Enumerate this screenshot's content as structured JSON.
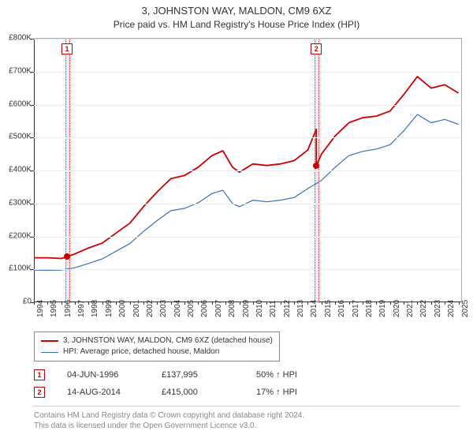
{
  "titles": {
    "main": "3, JOHNSTON WAY, MALDON, CM9 6XZ",
    "sub": "Price paid vs. HM Land Registry's House Price Index (HPI)"
  },
  "chart": {
    "type": "line",
    "background_color": "#ffffff",
    "grid_color": "#eeeeee",
    "axis_color": "#333333",
    "ylim": [
      0,
      800000
    ],
    "ytick_step": 100000,
    "ytick_labels": [
      "£0",
      "£100K",
      "£200K",
      "£300K",
      "£400K",
      "£500K",
      "£600K",
      "£700K",
      "£800K"
    ],
    "xlim": [
      1994,
      2025.2
    ],
    "xticks": [
      1994,
      1995,
      1996,
      1997,
      1998,
      1999,
      2000,
      2001,
      2002,
      2003,
      2004,
      2005,
      2006,
      2007,
      2008,
      2009,
      2010,
      2011,
      2012,
      2013,
      2014,
      2015,
      2016,
      2017,
      2018,
      2019,
      2020,
      2021,
      2022,
      2023,
      2024,
      2025
    ],
    "series": [
      {
        "name": "3, JOHNSTON WAY, MALDON, CM9 6XZ (detached house)",
        "color": "#cc0000",
        "line_width": 1.8,
        "data": [
          [
            1994,
            135000
          ],
          [
            1995,
            135000
          ],
          [
            1996,
            133000
          ],
          [
            1996.42,
            138000
          ],
          [
            1997,
            147000
          ],
          [
            1998,
            165000
          ],
          [
            1999,
            180000
          ],
          [
            2000,
            210000
          ],
          [
            2001,
            240000
          ],
          [
            2002,
            290000
          ],
          [
            2003,
            335000
          ],
          [
            2004,
            375000
          ],
          [
            2005,
            385000
          ],
          [
            2006,
            410000
          ],
          [
            2007,
            445000
          ],
          [
            2007.8,
            460000
          ],
          [
            2008.5,
            410000
          ],
          [
            2009,
            395000
          ],
          [
            2010,
            420000
          ],
          [
            2011,
            415000
          ],
          [
            2012,
            420000
          ],
          [
            2013,
            430000
          ],
          [
            2014,
            462000
          ],
          [
            2014.62,
            525000
          ],
          [
            2014.625,
            415000
          ],
          [
            2015,
            450000
          ],
          [
            2016,
            505000
          ],
          [
            2017,
            545000
          ],
          [
            2018,
            560000
          ],
          [
            2019,
            565000
          ],
          [
            2020,
            580000
          ],
          [
            2021,
            630000
          ],
          [
            2022,
            685000
          ],
          [
            2023,
            650000
          ],
          [
            2024,
            660000
          ],
          [
            2025,
            635000
          ]
        ]
      },
      {
        "name": "HPI: Average price, detached house, Maldon",
        "color": "#3b6fb6",
        "line_width": 1.2,
        "data": [
          [
            1994,
            98000
          ],
          [
            1995,
            97000
          ],
          [
            1996,
            98000
          ],
          [
            1997,
            105000
          ],
          [
            1998,
            118000
          ],
          [
            1999,
            132000
          ],
          [
            2000,
            155000
          ],
          [
            2001,
            178000
          ],
          [
            2002,
            215000
          ],
          [
            2003,
            248000
          ],
          [
            2004,
            278000
          ],
          [
            2005,
            285000
          ],
          [
            2006,
            302000
          ],
          [
            2007,
            330000
          ],
          [
            2007.8,
            340000
          ],
          [
            2008.5,
            300000
          ],
          [
            2009,
            290000
          ],
          [
            2010,
            310000
          ],
          [
            2011,
            305000
          ],
          [
            2012,
            310000
          ],
          [
            2013,
            318000
          ],
          [
            2014,
            345000
          ],
          [
            2015,
            370000
          ],
          [
            2016,
            410000
          ],
          [
            2017,
            445000
          ],
          [
            2018,
            458000
          ],
          [
            2019,
            465000
          ],
          [
            2020,
            478000
          ],
          [
            2021,
            520000
          ],
          [
            2022,
            570000
          ],
          [
            2023,
            545000
          ],
          [
            2024,
            555000
          ],
          [
            2025,
            540000
          ]
        ]
      }
    ],
    "sale_points": [
      {
        "x": 1996.42,
        "y": 138000,
        "color": "#cc0000"
      },
      {
        "x": 2014.62,
        "y": 415000,
        "color": "#cc0000"
      }
    ],
    "marker_bands": [
      {
        "label": "1",
        "x": 1996.42,
        "width_years": 0.22
      },
      {
        "label": "2",
        "x": 2014.62,
        "width_years": 0.22
      }
    ]
  },
  "legend": {
    "items": [
      {
        "color": "#cc0000",
        "label": "3, JOHNSTON WAY, MALDON, CM9 6XZ (detached house)"
      },
      {
        "color": "#3b6fb6",
        "label": "HPI: Average price, detached house, Maldon"
      }
    ]
  },
  "annotations": [
    {
      "marker": "1",
      "date": "04-JUN-1996",
      "price": "£137,995",
      "delta": "50% ↑ HPI"
    },
    {
      "marker": "2",
      "date": "14-AUG-2014",
      "price": "£415,000",
      "delta": "17% ↑ HPI"
    }
  ],
  "footer": {
    "line1": "Contains HM Land Registry data © Crown copyright and database right 2024.",
    "line2": "This data is licensed under the Open Government Licence v3.0."
  }
}
